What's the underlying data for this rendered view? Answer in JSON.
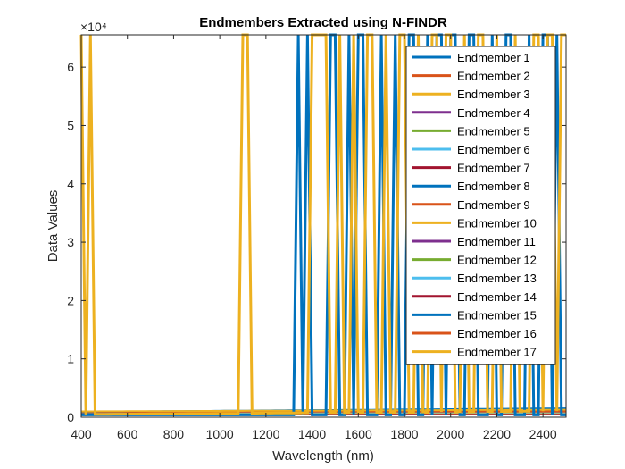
{
  "chart_data": {
    "type": "line",
    "title": "Endmembers Extracted using N-FINDR",
    "xlabel": "Wavelength (nm)",
    "ylabel": "Data Values",
    "exponent_label": "×10⁴",
    "xlim": [
      400,
      2500
    ],
    "ylim": [
      0,
      65535
    ],
    "x_ticks": [
      400,
      600,
      800,
      1000,
      1200,
      1400,
      1600,
      1800,
      2000,
      2200,
      2400
    ],
    "y_ticks": [
      0,
      10000,
      20000,
      30000,
      40000,
      50000,
      60000
    ],
    "y_tick_labels": [
      "0",
      "1",
      "2",
      "3",
      "4",
      "5",
      "6"
    ],
    "legend_position": "top-right",
    "series": [
      {
        "name": "Endmember  1",
        "color": "#0072BD",
        "spikes": [
          1340,
          1380,
          1490,
          1560,
          1610,
          1700,
          1760,
          1830,
          1900,
          1950,
          2010,
          2090,
          2180,
          2250,
          2340,
          2410,
          2460
        ]
      },
      {
        "name": "Endmember  2",
        "color": "#D95319",
        "spikes": []
      },
      {
        "name": "Endmember  3",
        "color": "#EDB120",
        "spikes": [
          400,
          440,
          1110,
          1410,
          1450,
          1520,
          1580,
          1650,
          1720,
          1790,
          1860,
          1930,
          1990,
          2060,
          2130,
          2200,
          2280,
          2370,
          2430,
          2490
        ]
      },
      {
        "name": "Endmember  4",
        "color": "#7E2F8E",
        "spikes": []
      },
      {
        "name": "Endmember  5",
        "color": "#77AC30",
        "spikes": []
      },
      {
        "name": "Endmember  6",
        "color": "#4DBEEE",
        "spikes": []
      },
      {
        "name": "Endmember  7",
        "color": "#A2142F",
        "spikes": []
      },
      {
        "name": "Endmember  8",
        "color": "#0072BD",
        "spikes": []
      },
      {
        "name": "Endmember  9",
        "color": "#D95319",
        "spikes": []
      },
      {
        "name": "Endmember 10",
        "color": "#EDB120",
        "spikes": []
      },
      {
        "name": "Endmember 11",
        "color": "#7E2F8E",
        "spikes": []
      },
      {
        "name": "Endmember 12",
        "color": "#77AC30",
        "spikes": []
      },
      {
        "name": "Endmember 13",
        "color": "#4DBEEE",
        "spikes": []
      },
      {
        "name": "Endmember 14",
        "color": "#A2142F",
        "spikes": []
      },
      {
        "name": "Endmember 15",
        "color": "#0072BD",
        "spikes": []
      },
      {
        "name": "Endmember 16",
        "color": "#D95319",
        "spikes": []
      },
      {
        "name": "Endmember 17",
        "color": "#EDB120",
        "spikes": []
      }
    ]
  }
}
